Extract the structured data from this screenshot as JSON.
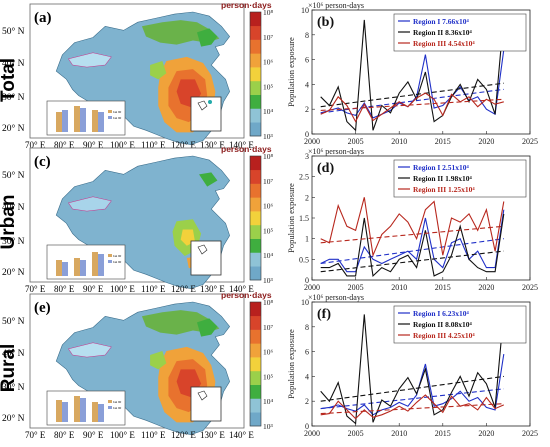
{
  "rows": [
    {
      "label": "Total",
      "map_panel": "(a)",
      "chart_panel": "(b)",
      "colorbar_unit": "person·days",
      "colorbar_ticks": [
        "10³",
        "10⁴",
        "10⁵",
        "10⁶",
        "10⁷",
        "10⁸"
      ],
      "lat_ticks": [
        "50° N",
        "40° N",
        "30° N",
        "20° N"
      ],
      "lon_ticks": [
        "70° E",
        "80° E",
        "90° E",
        "100° E",
        "110° E",
        "120° E",
        "130° E",
        "140° E"
      ],
      "inset_legend": [
        "Jan 90",
        "Jan 90"
      ]
    },
    {
      "label": "Urban",
      "map_panel": "(c)",
      "chart_panel": "(d)",
      "colorbar_unit": "person·days",
      "colorbar_ticks": [
        "10³",
        "10⁴",
        "10⁵",
        "10⁶",
        "10⁷",
        "10⁸"
      ],
      "lat_ticks": [
        "50° N",
        "40° N",
        "30° N",
        "20° N"
      ],
      "lon_ticks": [
        "70° E",
        "80° E",
        "90° E",
        "100° E",
        "110° E",
        "120° E",
        "130° E",
        "140° E"
      ],
      "inset_legend": [
        "Jan 90",
        "Jan 90"
      ]
    },
    {
      "label": "Rural",
      "map_panel": "(e)",
      "chart_panel": "(f)",
      "colorbar_unit": "person·days",
      "colorbar_ticks": [
        "10³",
        "10⁴",
        "10⁵",
        "10⁶",
        "10⁷",
        "10⁸"
      ],
      "lat_ticks": [
        "50° N",
        "40° N",
        "30° N",
        "20° N"
      ],
      "lon_ticks": [
        "70° E",
        "80° E",
        "90° E",
        "100° E",
        "110° E",
        "120° E",
        "130° E",
        "140° E"
      ],
      "inset_legend": [
        "Jan 90",
        "Jan 90"
      ]
    }
  ],
  "colorbar_colors": [
    "#6fa8c8",
    "#8fc3d6",
    "#3fae3f",
    "#9bd04a",
    "#f2d13b",
    "#f0a23a",
    "#e8722e",
    "#d8442a",
    "#b8201e"
  ],
  "chart_data": [
    {
      "type": "line",
      "panel": "(b)",
      "ylabel": "Population exposure",
      "y_unit": "×10⁶ person-days",
      "xlim": [
        2000,
        2025
      ],
      "ylim": [
        0,
        10
      ],
      "xticks": [
        2000,
        2005,
        2010,
        2015,
        2020,
        2025
      ],
      "yticks": [
        0,
        2,
        4,
        6,
        8,
        10
      ],
      "x": [
        2001,
        2002,
        2003,
        2004,
        2005,
        2006,
        2007,
        2008,
        2009,
        2010,
        2011,
        2012,
        2013,
        2014,
        2015,
        2016,
        2017,
        2018,
        2019,
        2020,
        2021,
        2022
      ],
      "series": [
        {
          "name": "Region I",
          "trend": "7.66x10⁴",
          "color": "#2030c8",
          "values": [
            1.7,
            1.9,
            2.1,
            1.7,
            1.5,
            2.5,
            1.3,
            1.6,
            1.9,
            2.5,
            2.2,
            3.0,
            6.4,
            2.1,
            2.3,
            3.0,
            3.8,
            2.7,
            3.0,
            2.0,
            1.6,
            6.8
          ],
          "trend_line": [
            1.7,
            3.6
          ]
        },
        {
          "name": "Region II",
          "trend": "8.36x10⁴",
          "color": "#111111",
          "values": [
            3.0,
            2.3,
            3.8,
            1.0,
            0.3,
            9.2,
            0.3,
            2.3,
            1.7,
            3.3,
            4.2,
            2.8,
            5.0,
            1.0,
            1.5,
            3.0,
            4.0,
            2.6,
            4.4,
            3.6,
            1.6,
            9.5
          ],
          "trend_line": [
            2.2,
            4.1
          ]
        },
        {
          "name": "Region III",
          "trend": "4.54x10⁴",
          "color": "#b8281e",
          "values": [
            1.6,
            1.9,
            3.0,
            2.3,
            1.0,
            2.4,
            1.1,
            1.6,
            2.1,
            2.6,
            2.2,
            2.9,
            3.3,
            2.8,
            1.5,
            3.2,
            2.6,
            3.0,
            2.2,
            2.8,
            2.4,
            2.6
          ],
          "trend_line": [
            1.9,
            2.8
          ]
        }
      ]
    },
    {
      "type": "line",
      "panel": "(d)",
      "ylabel": "Population exposure",
      "y_unit": "×10⁶ person-days",
      "xlim": [
        2000,
        2025
      ],
      "ylim": [
        0,
        3
      ],
      "xticks": [
        2000,
        2005,
        2010,
        2015,
        2020,
        2025
      ],
      "yticks": [
        0,
        0.5,
        1,
        1.5,
        2,
        2.5,
        3
      ],
      "x": [
        2001,
        2002,
        2003,
        2004,
        2005,
        2006,
        2007,
        2008,
        2009,
        2010,
        2011,
        2012,
        2013,
        2014,
        2015,
        2016,
        2017,
        2018,
        2019,
        2020,
        2021,
        2022
      ],
      "series": [
        {
          "name": "Region I",
          "trend": "2.51x10⁴",
          "color": "#2030c8",
          "values": [
            0.4,
            0.5,
            0.5,
            0.2,
            0.2,
            0.8,
            0.5,
            0.4,
            0.5,
            0.6,
            0.7,
            0.5,
            1.5,
            0.5,
            0.3,
            0.9,
            1.0,
            0.5,
            0.7,
            0.3,
            0.3,
            1.7
          ],
          "trend_line": [
            0.4,
            1.0
          ]
        },
        {
          "name": "Region II",
          "trend": "1.98x10⁴",
          "color": "#111111",
          "values": [
            0.3,
            0.3,
            0.4,
            0.1,
            0.1,
            1.5,
            0.1,
            0.3,
            0.2,
            0.5,
            0.6,
            0.3,
            1.2,
            0.1,
            0.2,
            0.6,
            1.3,
            0.5,
            0.3,
            0.2,
            0.2,
            1.6
          ],
          "trend_line": [
            0.2,
            0.7
          ]
        },
        {
          "name": "Region III",
          "trend": "1.25x10⁴",
          "color": "#b8281e",
          "values": [
            1.0,
            0.9,
            1.8,
            1.3,
            1.2,
            2.0,
            0.6,
            1.1,
            1.3,
            1.6,
            1.4,
            1.0,
            1.7,
            1.9,
            0.6,
            1.5,
            1.4,
            1.6,
            1.2,
            1.7,
            0.7,
            1.9
          ],
          "trend_line": [
            0.9,
            1.3
          ]
        }
      ]
    },
    {
      "type": "line",
      "panel": "(f)",
      "ylabel": "Population exposure",
      "y_unit": "×10⁶ person-days",
      "xlim": [
        2000,
        2025
      ],
      "ylim": [
        0,
        10
      ],
      "xticks": [
        2000,
        2005,
        2010,
        2015,
        2020,
        2025
      ],
      "yticks": [
        0,
        2,
        4,
        6,
        8,
        10
      ],
      "x": [
        2001,
        2002,
        2003,
        2004,
        2005,
        2006,
        2007,
        2008,
        2009,
        2010,
        2011,
        2012,
        2013,
        2014,
        2015,
        2016,
        2017,
        2018,
        2019,
        2020,
        2021,
        2022
      ],
      "series": [
        {
          "name": "Region I",
          "trend": "6.23x10⁴",
          "color": "#2030c8",
          "values": [
            1.4,
            1.5,
            1.7,
            1.4,
            1.2,
            1.7,
            0.9,
            1.3,
            1.5,
            1.9,
            1.6,
            2.5,
            5.0,
            1.6,
            1.8,
            2.2,
            2.8,
            2.0,
            2.3,
            1.5,
            1.3,
            5.8
          ],
          "trend_line": [
            1.4,
            3.0
          ]
        },
        {
          "name": "Region II",
          "trend": "8.08x10⁴",
          "color": "#111111",
          "values": [
            2.8,
            2.0,
            3.5,
            0.8,
            0.2,
            9.0,
            0.3,
            2.1,
            1.6,
            3.0,
            3.9,
            2.6,
            4.6,
            0.9,
            1.3,
            2.7,
            4.0,
            2.4,
            4.3,
            3.4,
            1.5,
            9.2
          ],
          "trend_line": [
            2.0,
            4.0
          ]
        },
        {
          "name": "Region III",
          "trend": "4.25x10⁴",
          "color": "#b8281e",
          "values": [
            0.9,
            1.0,
            2.0,
            1.3,
            0.6,
            1.3,
            0.7,
            0.9,
            1.2,
            1.6,
            1.2,
            1.9,
            2.5,
            1.8,
            1.1,
            2.4,
            1.6,
            1.8,
            1.3,
            2.3,
            1.4,
            1.7
          ],
          "trend_line": [
            1.0,
            1.8
          ]
        }
      ]
    }
  ]
}
